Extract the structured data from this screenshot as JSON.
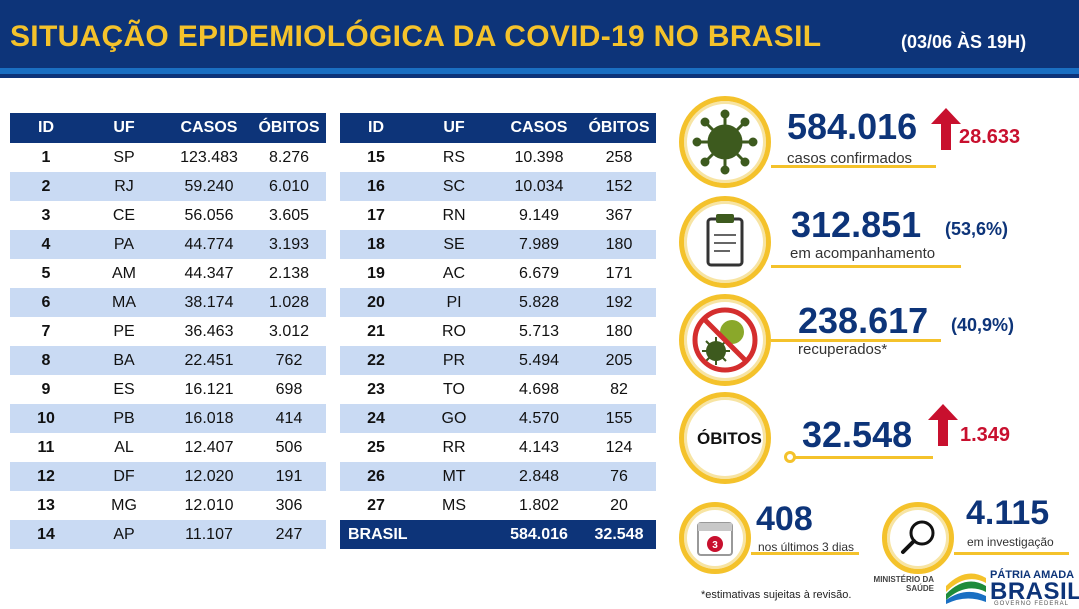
{
  "header": {
    "title": "SITUAÇÃO EPIDEMIOLÓGICA DA COVID-19 NO BRASIL",
    "date": "(03/06 ÀS 19H)"
  },
  "table": {
    "columns": [
      "ID",
      "UF",
      "CASOS",
      "ÓBITOS"
    ],
    "left_rows": [
      {
        "id": "1",
        "uf": "SP",
        "casos": "123.483",
        "obitos": "8.276"
      },
      {
        "id": "2",
        "uf": "RJ",
        "casos": "59.240",
        "obitos": "6.010"
      },
      {
        "id": "3",
        "uf": "CE",
        "casos": "56.056",
        "obitos": "3.605"
      },
      {
        "id": "4",
        "uf": "PA",
        "casos": "44.774",
        "obitos": "3.193"
      },
      {
        "id": "5",
        "uf": "AM",
        "casos": "44.347",
        "obitos": "2.138"
      },
      {
        "id": "6",
        "uf": "MA",
        "casos": "38.174",
        "obitos": "1.028"
      },
      {
        "id": "7",
        "uf": "PE",
        "casos": "36.463",
        "obitos": "3.012"
      },
      {
        "id": "8",
        "uf": "BA",
        "casos": "22.451",
        "obitos": "762"
      },
      {
        "id": "9",
        "uf": "ES",
        "casos": "16.121",
        "obitos": "698"
      },
      {
        "id": "10",
        "uf": "PB",
        "casos": "16.018",
        "obitos": "414"
      },
      {
        "id": "11",
        "uf": "AL",
        "casos": "12.407",
        "obitos": "506"
      },
      {
        "id": "12",
        "uf": "DF",
        "casos": "12.020",
        "obitos": "191"
      },
      {
        "id": "13",
        "uf": "MG",
        "casos": "12.010",
        "obitos": "306"
      },
      {
        "id": "14",
        "uf": "AP",
        "casos": "11.107",
        "obitos": "247"
      }
    ],
    "right_rows": [
      {
        "id": "15",
        "uf": "RS",
        "casos": "10.398",
        "obitos": "258"
      },
      {
        "id": "16",
        "uf": "SC",
        "casos": "10.034",
        "obitos": "152"
      },
      {
        "id": "17",
        "uf": "RN",
        "casos": "9.149",
        "obitos": "367"
      },
      {
        "id": "18",
        "uf": "SE",
        "casos": "7.989",
        "obitos": "180"
      },
      {
        "id": "19",
        "uf": "AC",
        "casos": "6.679",
        "obitos": "171"
      },
      {
        "id": "20",
        "uf": "PI",
        "casos": "5.828",
        "obitos": "192"
      },
      {
        "id": "21",
        "uf": "RO",
        "casos": "5.713",
        "obitos": "180"
      },
      {
        "id": "22",
        "uf": "PR",
        "casos": "5.494",
        "obitos": "205"
      },
      {
        "id": "23",
        "uf": "TO",
        "casos": "4.698",
        "obitos": "82"
      },
      {
        "id": "24",
        "uf": "GO",
        "casos": "4.570",
        "obitos": "155"
      },
      {
        "id": "25",
        "uf": "RR",
        "casos": "4.143",
        "obitos": "124"
      },
      {
        "id": "26",
        "uf": "MT",
        "casos": "2.848",
        "obitos": "76"
      },
      {
        "id": "27",
        "uf": "MS",
        "casos": "1.802",
        "obitos": "20"
      }
    ],
    "total": {
      "label": "BRASIL",
      "casos": "584.016",
      "obitos": "32.548"
    }
  },
  "stats": {
    "cases": {
      "value": "584.016",
      "label": "casos confirmados",
      "delta": "28.633",
      "icon": "virus-icon"
    },
    "monitoring": {
      "value": "312.851",
      "pct": "(53,6%)",
      "label": "em acompanhamento",
      "icon": "clipboard-icon"
    },
    "recovered": {
      "value": "238.617",
      "pct": "(40,9%)",
      "label": "recuperados*",
      "icon": "virus-crossed-icon"
    },
    "deaths": {
      "title": "ÓBITOS",
      "value": "32.548",
      "delta": "1.349"
    },
    "last_days": {
      "value": "408",
      "label": "nos últimos 3 dias",
      "calendar_number": "3",
      "icon": "calendar-icon"
    },
    "investigation": {
      "value": "4.115",
      "label": "em investigação",
      "icon": "magnifier-icon"
    }
  },
  "footer": {
    "note": "*estimativas sujeitas à revisão.",
    "ministry_line1": "MINISTÉRIO DA",
    "ministry_line2": "SAÚDE",
    "brand_line1": "PÁTRIA AMADA",
    "brand_line2": "BRASIL",
    "brand_line3": "GOVERNO FEDERAL"
  },
  "colors": {
    "navy": "#0d3479",
    "gold": "#f4c22b",
    "row_alt": "#c9daf3",
    "alert_red": "#c8102e",
    "virus_green": "#3d5a1e"
  }
}
